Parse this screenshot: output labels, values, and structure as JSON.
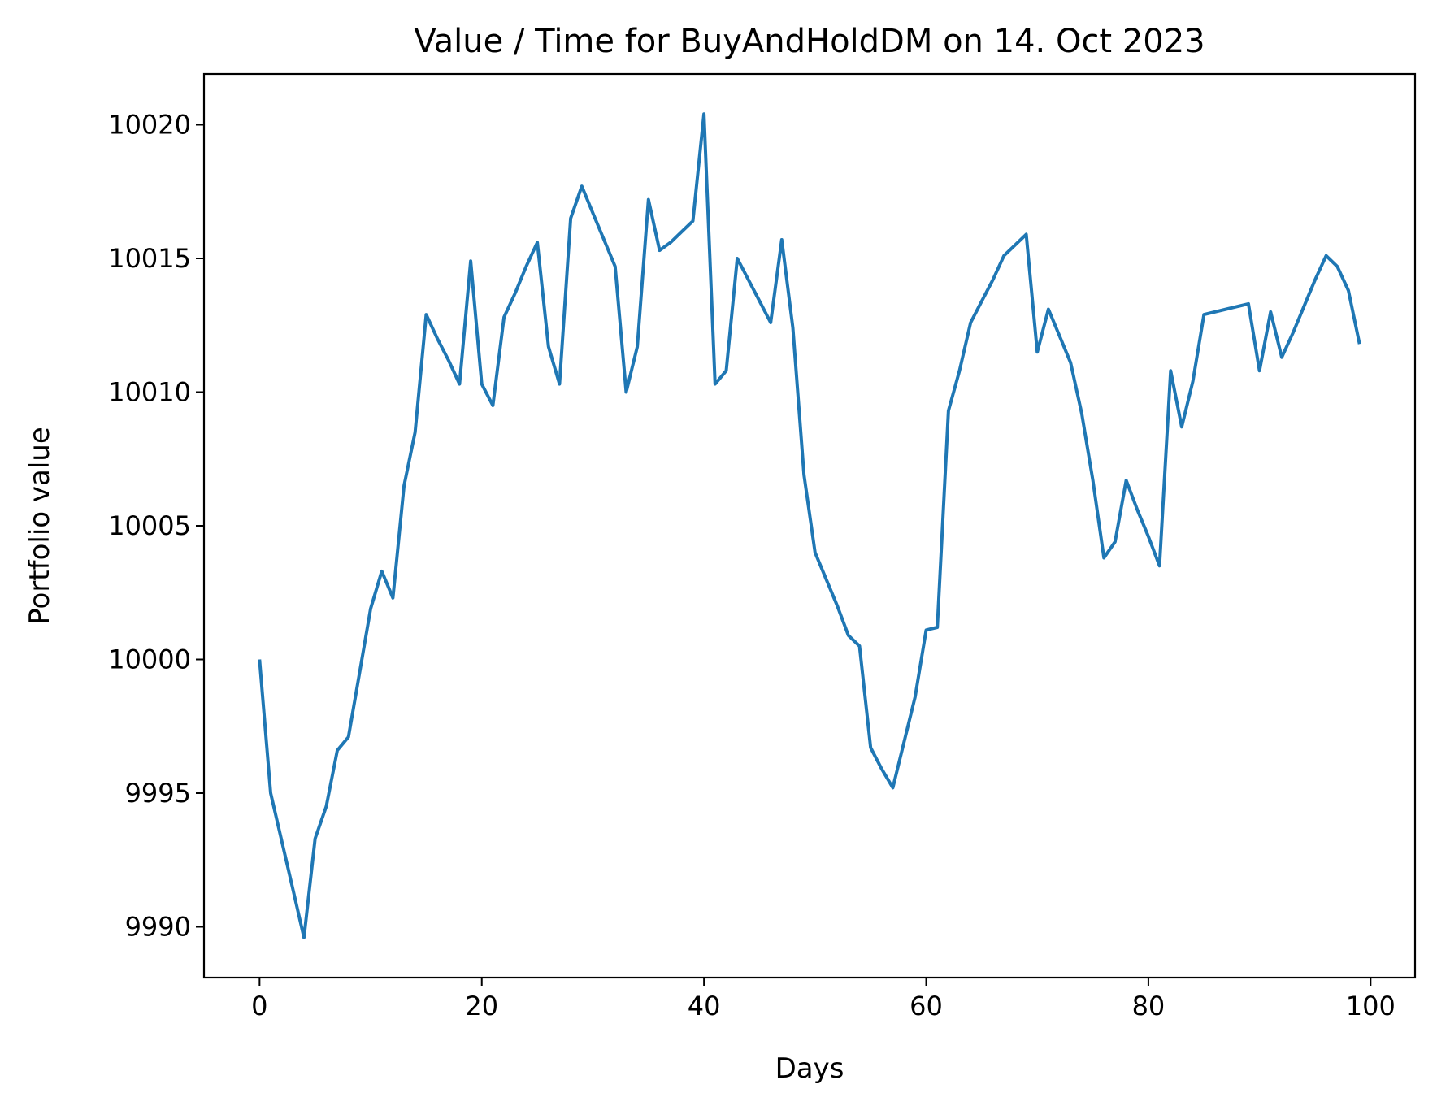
{
  "chart_data": {
    "type": "line",
    "title": "Value / Time for BuyAndHoldDM on 14. Oct 2023",
    "xlabel": "Days",
    "ylabel": "Portfolio value",
    "xlim": [
      -5,
      104
    ],
    "ylim": [
      9988.1,
      10021.9
    ],
    "xticks": [
      0,
      20,
      40,
      60,
      80,
      100
    ],
    "xtick_labels": [
      "0",
      "20",
      "40",
      "60",
      "80",
      "100"
    ],
    "yticks": [
      9990,
      9995,
      10000,
      10005,
      10010,
      10015,
      10020
    ],
    "ytick_labels": [
      "9990",
      "9995",
      "10000",
      "10005",
      "10010",
      "10015",
      "10020"
    ],
    "grid": false,
    "legend": null,
    "line_color": "#1f77b4",
    "series": [
      {
        "x": [
          0,
          1,
          2,
          3,
          4,
          5,
          6,
          7,
          8,
          9,
          10,
          11,
          12,
          13,
          14,
          15,
          16,
          17,
          18,
          19,
          20,
          21,
          22,
          23,
          24,
          25,
          26,
          27,
          28,
          29,
          30,
          31,
          32,
          33,
          34,
          35,
          36,
          37,
          38,
          39,
          40,
          41,
          42,
          43,
          44,
          45,
          46,
          47,
          48,
          49,
          50,
          51,
          52,
          53,
          54,
          55,
          56,
          57,
          58,
          59,
          60,
          61,
          62,
          63,
          64,
          65,
          66,
          67,
          68,
          69,
          70,
          71,
          72,
          73,
          74,
          75,
          76,
          77,
          78,
          79,
          80,
          81,
          82,
          83,
          84,
          85,
          86,
          87,
          88,
          89,
          90,
          91,
          92,
          93,
          94,
          95,
          96,
          97,
          98,
          99
        ],
        "y": [
          10000.0,
          9995.0,
          9993.2,
          9991.4,
          9989.6,
          9993.3,
          9994.5,
          9996.6,
          9997.1,
          9999.5,
          10001.9,
          10003.3,
          10002.3,
          10006.5,
          10008.5,
          10012.9,
          10012.0,
          10011.2,
          10010.3,
          10014.9,
          10010.3,
          10009.5,
          10012.8,
          10013.7,
          10014.7,
          10015.6,
          10011.7,
          10010.3,
          10016.5,
          10017.7,
          10016.7,
          10015.7,
          10014.7,
          10010.0,
          10011.7,
          10017.2,
          10015.3,
          10015.6,
          10016.0,
          10016.4,
          10020.4,
          10010.3,
          10010.8,
          10015.0,
          10014.2,
          10013.4,
          10012.6,
          10015.7,
          10012.4,
          10006.9,
          10004.0,
          10003.0,
          10002.0,
          10000.9,
          10000.5,
          9996.7,
          9995.9,
          9995.2,
          9996.9,
          9998.6,
          10001.1,
          10001.2,
          10009.3,
          10010.8,
          10012.6,
          10013.4,
          10014.2,
          10015.1,
          10015.5,
          10015.9,
          10011.5,
          10013.1,
          10012.1,
          10011.1,
          10009.2,
          10006.7,
          10003.8,
          10004.4,
          10006.7,
          10005.6,
          10004.6,
          10003.5,
          10010.8,
          10008.7,
          10010.4,
          10012.9,
          10013.0,
          10013.1,
          10013.2,
          10013.3,
          10010.8,
          10013.0,
          10011.3,
          10012.2,
          10013.2,
          10014.2,
          10015.1,
          10014.7,
          10013.8,
          10011.8
        ]
      }
    ]
  }
}
